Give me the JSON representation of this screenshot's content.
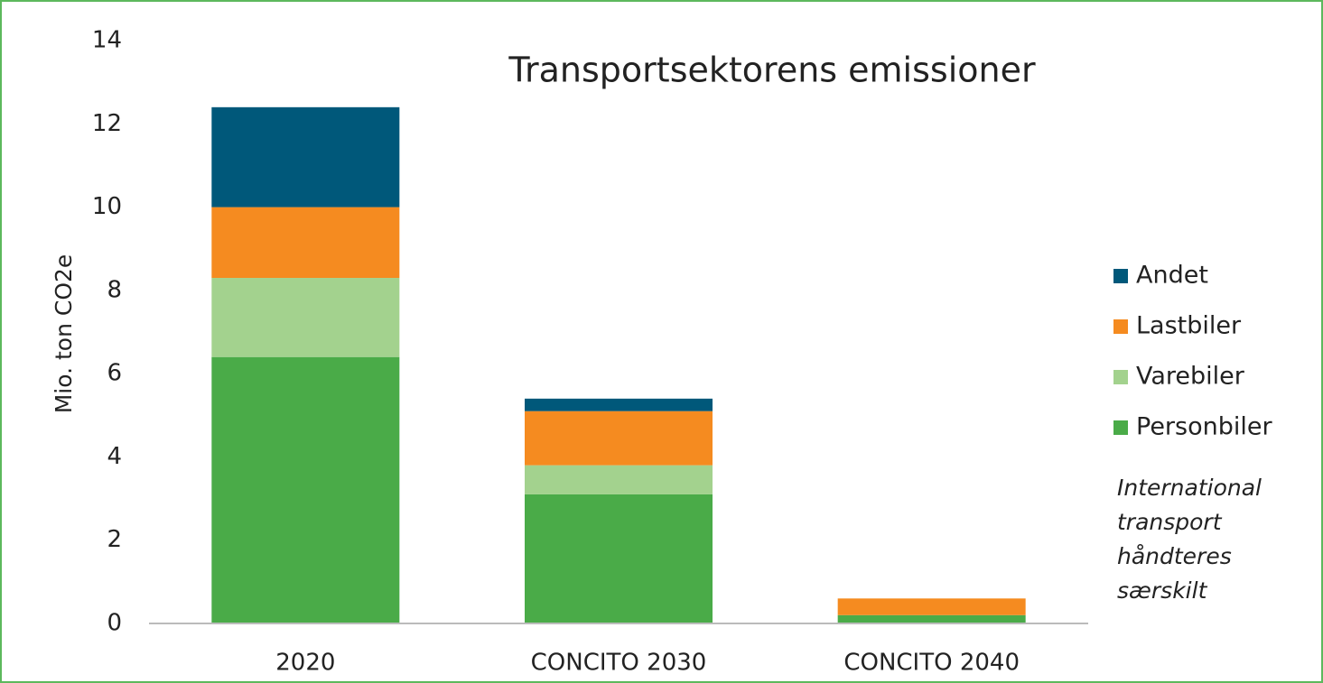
{
  "chart_data": {
    "type": "stacked_bar",
    "title": "Transportsektorens emissioner",
    "y_label": "Mio. ton CO2e",
    "categories": [
      "2020",
      "CONCITO 2030",
      "CONCITO 2040"
    ],
    "series": [
      {
        "name": "Personbiler",
        "color": "#4aab48",
        "values": [
          6.4,
          3.1,
          0.2
        ]
      },
      {
        "name": "Varebiler",
        "color": "#a3d28e",
        "values": [
          1.9,
          0.7,
          0
        ]
      },
      {
        "name": "Lastbiler",
        "color": "#f58b20",
        "values": [
          1.7,
          1.3,
          0.4
        ]
      },
      {
        "name": "Andet",
        "color": "#00587a",
        "values": [
          2.4,
          0.3,
          0
        ]
      }
    ],
    "ylim": [
      0,
      14
    ],
    "yticks": [
      0,
      2,
      4,
      6,
      8,
      10,
      12,
      14
    ],
    "grid": false,
    "legend": "right",
    "note": [
      "International",
      "transport",
      "håndteres",
      "særskilt"
    ]
  }
}
